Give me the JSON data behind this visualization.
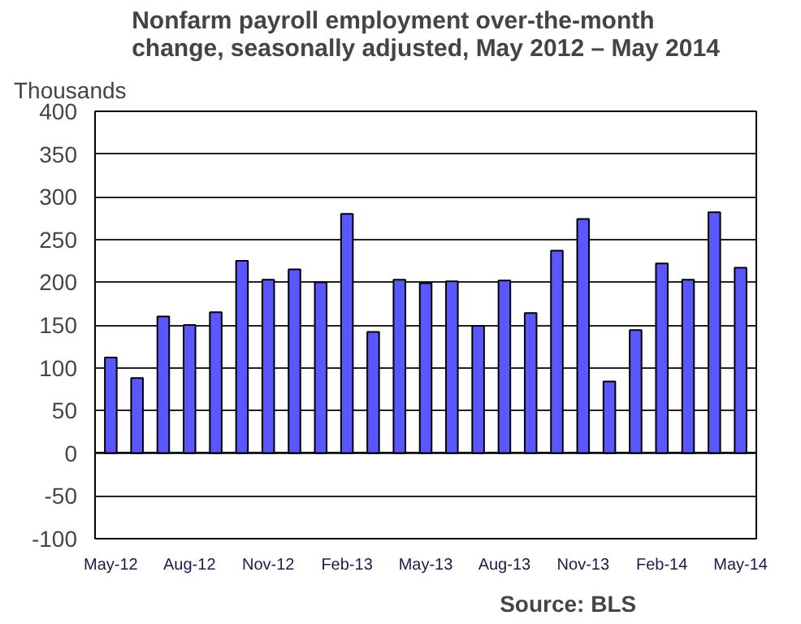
{
  "chart_data": {
    "type": "bar",
    "title": "Nonfarm payroll employment over-the-month\nchange, seasonally adjusted, May 2012 – May 2014",
    "ylabel": "Thousands",
    "categories": [
      "May-12",
      null,
      null,
      "Aug-12",
      null,
      null,
      "Nov-12",
      null,
      null,
      "Feb-13",
      null,
      null,
      "May-13",
      null,
      null,
      "Aug-13",
      null,
      null,
      "Nov-13",
      null,
      null,
      "Feb-14",
      null,
      null,
      "May-14"
    ],
    "values": [
      112,
      88,
      160,
      150,
      165,
      225,
      203,
      215,
      200,
      280,
      142,
      203,
      199,
      201,
      149,
      202,
      164,
      237,
      274,
      84,
      144,
      222,
      203,
      282,
      217
    ],
    "color": "#5b57ff",
    "ylim": [
      -100,
      400
    ],
    "yticks": [
      -100,
      -50,
      0,
      50,
      100,
      150,
      200,
      250,
      300,
      350,
      400
    ],
    "grid": "y",
    "annotations": [
      "Source:  BLS"
    ]
  }
}
